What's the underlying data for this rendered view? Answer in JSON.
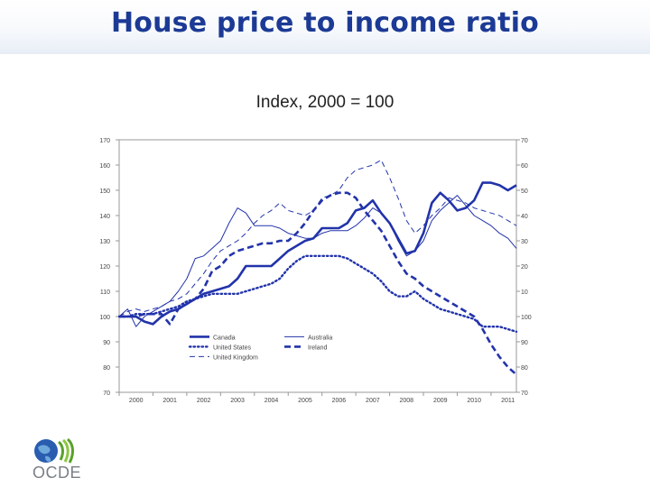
{
  "header": {
    "title": "House price to income ratio"
  },
  "subtitle": "Index, 2000 = 100",
  "logo": {
    "text": "OCDE",
    "icon": "oecd-globe-logo-icon"
  },
  "colors": {
    "title": "#1c3a95",
    "series": "#2233aa"
  },
  "chart_data": {
    "type": "line",
    "title": "House price to income ratio",
    "subtitle": "Index, 2000 = 100",
    "xlabel": "",
    "ylabel": "",
    "ylim": [
      70,
      170
    ],
    "xlim": [
      2000,
      2011.75
    ],
    "yticks": [
      70,
      80,
      90,
      100,
      110,
      120,
      130,
      140,
      150,
      160,
      170
    ],
    "xticks": [
      2000,
      2001,
      2002,
      2003,
      2004,
      2005,
      2006,
      2007,
      2008,
      2009,
      2010,
      2011
    ],
    "legend_position": "bottom-left, inside plot",
    "x": [
      2000,
      2000.25,
      2000.5,
      2000.75,
      2001,
      2001.25,
      2001.5,
      2001.75,
      2002,
      2002.25,
      2002.5,
      2002.75,
      2003,
      2003.25,
      2003.5,
      2003.75,
      2004,
      2004.25,
      2004.5,
      2004.75,
      2005,
      2005.25,
      2005.5,
      2005.75,
      2006,
      2006.25,
      2006.5,
      2006.75,
      2007,
      2007.25,
      2007.5,
      2007.75,
      2008,
      2008.25,
      2008.5,
      2008.75,
      2009,
      2009.25,
      2009.5,
      2009.75,
      2010,
      2010.25,
      2010.5,
      2010.75,
      2011,
      2011.25,
      2011.5,
      2011.75
    ],
    "series": [
      {
        "name": "Canada",
        "style": "thick-solid",
        "values": [
          100,
          100,
          100,
          98,
          97,
          100,
          102,
          103,
          105,
          107,
          109,
          110,
          111,
          112,
          115,
          120,
          120,
          120,
          120,
          123,
          126,
          128,
          130,
          131,
          135,
          135,
          135,
          137,
          142,
          143,
          146,
          141,
          137,
          131,
          125,
          126,
          133,
          145,
          149,
          146,
          142,
          143,
          146,
          153,
          153,
          152,
          150,
          152
        ]
      },
      {
        "name": "United States",
        "style": "dotted",
        "values": [
          100,
          100,
          101,
          101,
          101,
          102,
          103,
          104,
          106,
          107,
          108,
          109,
          109,
          109,
          109,
          110,
          111,
          112,
          113,
          115,
          119,
          122,
          124,
          124,
          124,
          124,
          124,
          123,
          121,
          119,
          117,
          114,
          110,
          108,
          108,
          110,
          107,
          105,
          103,
          102,
          101,
          100,
          99,
          96,
          96,
          96,
          95,
          94
        ]
      },
      {
        "name": "United Kingdom",
        "style": "thin-dashed",
        "values": [
          100,
          102,
          103,
          102,
          103,
          104,
          106,
          107,
          109,
          113,
          117,
          122,
          126,
          128,
          130,
          133,
          137,
          140,
          142,
          145,
          142,
          141,
          140,
          142,
          147,
          148,
          150,
          155,
          158,
          159,
          160,
          162,
          155,
          147,
          138,
          133,
          136,
          140,
          143,
          147,
          146,
          145,
          143,
          142,
          141,
          140,
          138,
          136
        ]
      },
      {
        "name": "Australia",
        "style": "thin-solid",
        "values": [
          100,
          103,
          96,
          100,
          102,
          104,
          106,
          110,
          115,
          123,
          124,
          127,
          130,
          137,
          143,
          141,
          136,
          136,
          136,
          135,
          133,
          132,
          131,
          131,
          133,
          134,
          134,
          134,
          136,
          139,
          143,
          141,
          137,
          130,
          124,
          126,
          130,
          138,
          142,
          145,
          148,
          144,
          140,
          138,
          136,
          133,
          131,
          127
        ]
      },
      {
        "name": "Ireland",
        "style": "thick-dashed",
        "values": [
          100,
          100,
          100,
          101,
          101,
          101,
          97,
          103,
          105,
          107,
          111,
          118,
          120,
          124,
          126,
          127,
          128,
          129,
          129,
          130,
          130,
          133,
          137,
          142,
          146,
          148,
          149,
          149,
          147,
          142,
          138,
          134,
          128,
          122,
          117,
          115,
          112,
          110,
          108,
          106,
          104,
          102,
          100,
          95,
          89,
          84,
          80,
          77
        ]
      }
    ]
  }
}
